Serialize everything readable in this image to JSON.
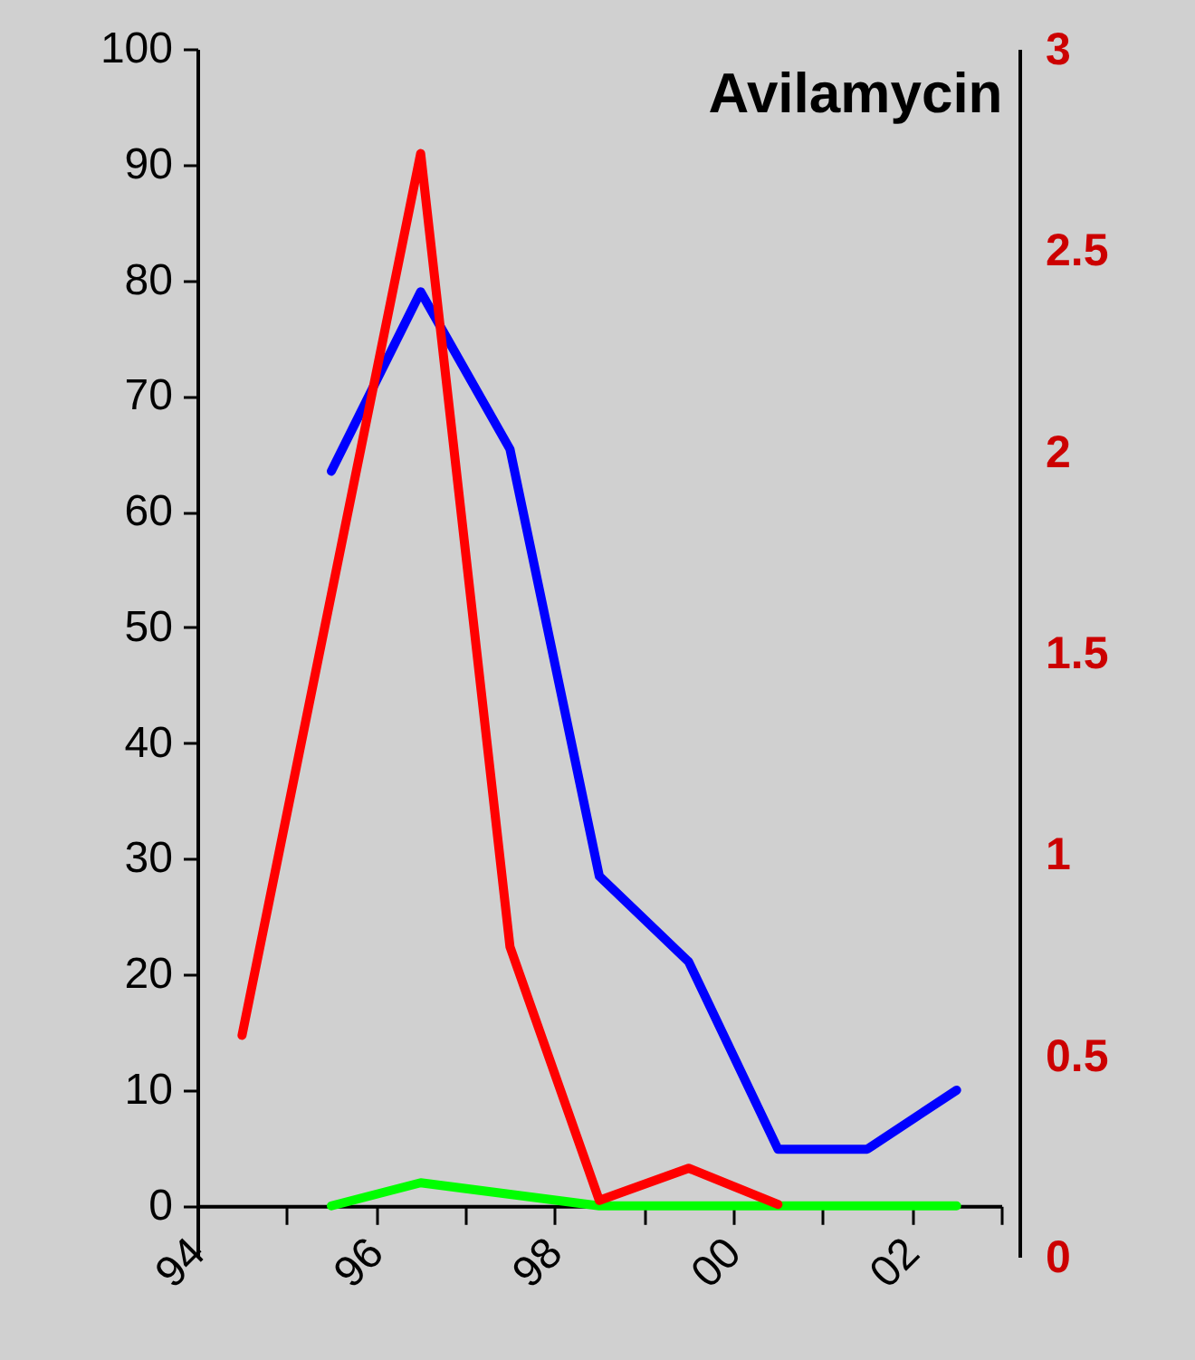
{
  "chart_data": {
    "type": "line",
    "title": "Avilamycin",
    "xlim": [
      1994,
      2003
    ],
    "xticks": [
      {
        "value": 1994,
        "label": "94"
      },
      {
        "value": 1995,
        "label": null
      },
      {
        "value": 1996,
        "label": "96"
      },
      {
        "value": 1997,
        "label": null
      },
      {
        "value": 1998,
        "label": "98"
      },
      {
        "value": 1999,
        "label": null
      },
      {
        "value": 2000,
        "label": "00"
      },
      {
        "value": 2001,
        "label": null
      },
      {
        "value": 2002,
        "label": "02"
      },
      {
        "value": 2003,
        "label": null
      }
    ],
    "ylim": [
      -4.4,
      100
    ],
    "yticks": [
      0,
      10,
      20,
      30,
      40,
      50,
      60,
      70,
      80,
      90,
      100
    ],
    "y2lim": [
      0,
      3
    ],
    "y2ticks": [
      0,
      0.5,
      1,
      1.5,
      2,
      2.5,
      3
    ],
    "grid": false,
    "legend": false,
    "line_style": "solid",
    "series": [
      {
        "color": "#0000ff",
        "x": [
          1995.5,
          1996.5,
          1997.5,
          1998.5,
          1999.5,
          2000.5,
          2001.5,
          2002.5
        ],
        "values": [
          63.5,
          79,
          65.4,
          28.5,
          21.1,
          4.9,
          4.9,
          10
        ]
      },
      {
        "color": "#00ff00",
        "x": [
          1995.5,
          1996.5,
          1997.5,
          1998.5,
          1999.5,
          2000.5,
          2001.5,
          2002.5
        ],
        "values": [
          0,
          2,
          1,
          0,
          0,
          0,
          0,
          0
        ]
      },
      {
        "color": "#ff0000",
        "axis": "y2",
        "x": [
          1994.5,
          1996.5,
          1997.5,
          1998.5,
          1999.5,
          2000.5
        ],
        "values": [
          0.55,
          2.74,
          0.77,
          0.14,
          0.22,
          0.13
        ]
      }
    ]
  }
}
